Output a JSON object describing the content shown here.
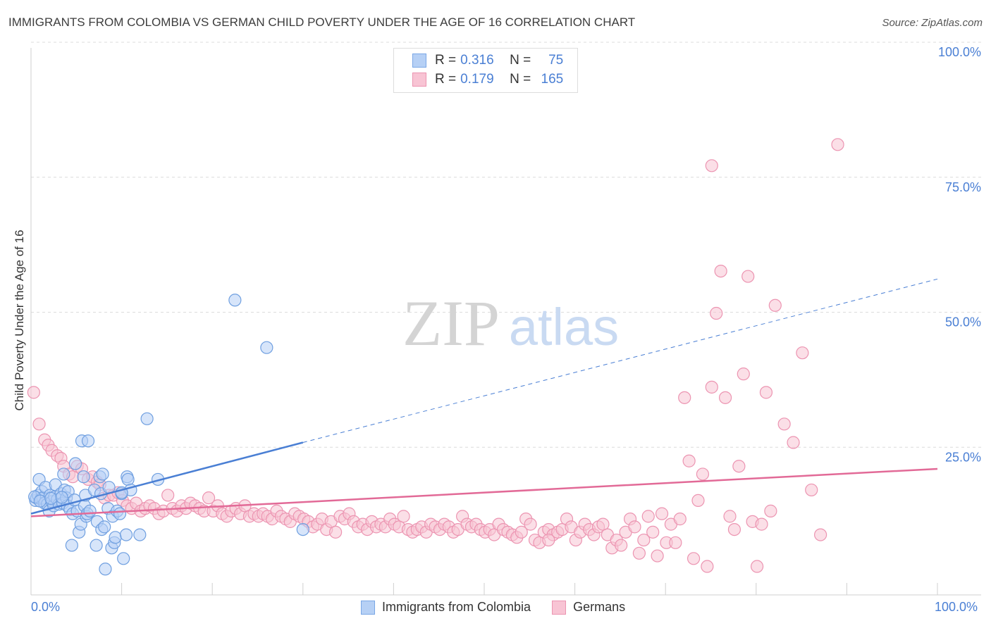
{
  "title": "IMMIGRANTS FROM COLOMBIA VS GERMAN CHILD POVERTY UNDER THE AGE OF 16 CORRELATION CHART",
  "source": "Source: ZipAtlas.com",
  "watermark": {
    "zip": "ZIP",
    "atlas": "atlas"
  },
  "legend": {
    "series1": {
      "r_label": "R = ",
      "r_value": "0.316",
      "n_label": "N = ",
      "n_value": "75"
    },
    "series2": {
      "r_label": "R = ",
      "r_value": "0.179",
      "n_label": "N = ",
      "n_value": "165"
    }
  },
  "x_min_label": "0.0%",
  "x_max_label": "100.0%",
  "colors": {
    "blue": "#4a7fd4",
    "blue_fill": "#b6d0f5",
    "pink": "#e26a97",
    "pink_fill": "#f8c4d4",
    "axis_text": "#4a7fd4"
  },
  "chart_data": {
    "type": "scatter",
    "title": "IMMIGRANTS FROM COLOMBIA VS GERMAN CHILD POVERTY UNDER THE AGE OF 16 CORRELATION CHART",
    "xlabel": "",
    "ylabel": "Child Poverty Under the Age of 16",
    "xlim": [
      0,
      100
    ],
    "ylim": [
      0,
      100
    ],
    "y_ticks": [
      {
        "value": 25,
        "label": "25.0%"
      },
      {
        "value": 50,
        "label": "50.0%"
      },
      {
        "value": 75,
        "label": "75.0%"
      },
      {
        "value": 100,
        "label": "100.0%"
      }
    ],
    "series": [
      {
        "name": "Immigrants from Colombia",
        "color": "#4a7fd4",
        "points": [
          [
            0.5,
            15.5
          ],
          [
            0.6,
            16.0
          ],
          [
            0.8,
            16.5
          ],
          [
            0.9,
            19.5
          ],
          [
            1.1,
            15.8
          ],
          [
            1.2,
            17.2
          ],
          [
            1.3,
            16.0
          ],
          [
            1.5,
            15.0
          ],
          [
            1.6,
            18.0
          ],
          [
            1.8,
            14.8
          ],
          [
            2.0,
            13.5
          ],
          [
            2.1,
            16.5
          ],
          [
            2.3,
            15.3
          ],
          [
            2.5,
            14.5
          ],
          [
            2.6,
            16.2
          ],
          [
            2.7,
            18.5
          ],
          [
            2.9,
            15.7
          ],
          [
            3.1,
            14.8
          ],
          [
            3.3,
            16.8
          ],
          [
            3.5,
            15.0
          ],
          [
            3.6,
            20.5
          ],
          [
            3.7,
            17.5
          ],
          [
            3.9,
            16.0
          ],
          [
            4.0,
            14.5
          ],
          [
            4.1,
            17.2
          ],
          [
            4.3,
            13.8
          ],
          [
            4.5,
            7.0
          ],
          [
            4.6,
            13.0
          ],
          [
            4.9,
            22.5
          ],
          [
            5.1,
            13.5
          ],
          [
            5.3,
            9.5
          ],
          [
            5.5,
            11.0
          ],
          [
            5.6,
            26.8
          ],
          [
            5.8,
            20.0
          ],
          [
            5.9,
            14.5
          ],
          [
            6.0,
            16.5
          ],
          [
            6.1,
            12.5
          ],
          [
            6.2,
            13.0
          ],
          [
            6.3,
            26.8
          ],
          [
            6.5,
            13.5
          ],
          [
            7.0,
            17.5
          ],
          [
            7.2,
            7.0
          ],
          [
            7.3,
            11.5
          ],
          [
            7.6,
            20.0
          ],
          [
            7.7,
            16.8
          ],
          [
            7.8,
            10.0
          ],
          [
            7.9,
            20.5
          ],
          [
            8.1,
            10.5
          ],
          [
            8.2,
            2.5
          ],
          [
            8.5,
            14.0
          ],
          [
            8.6,
            18.0
          ],
          [
            8.9,
            6.5
          ],
          [
            9.0,
            12.5
          ],
          [
            9.2,
            7.5
          ],
          [
            9.3,
            8.5
          ],
          [
            9.5,
            13.5
          ],
          [
            9.8,
            13.0
          ],
          [
            10.0,
            16.8
          ],
          [
            10.2,
            4.5
          ],
          [
            10.5,
            9.0
          ],
          [
            10.6,
            20.0
          ],
          [
            10.7,
            19.5
          ],
          [
            11.0,
            17.5
          ],
          [
            12.0,
            9.0
          ],
          [
            12.8,
            31.0
          ],
          [
            14.0,
            19.5
          ],
          [
            22.5,
            53.5
          ],
          [
            26.0,
            44.5
          ],
          [
            30.0,
            10.0
          ],
          [
            10.0,
            17.0
          ],
          [
            0.4,
            16.2
          ],
          [
            1.0,
            15.4
          ],
          [
            2.2,
            15.9
          ],
          [
            3.4,
            16.1
          ],
          [
            4.8,
            15.6
          ]
        ]
      },
      {
        "name": "Germans",
        "color": "#e26a97",
        "points": [
          [
            0.3,
            36.0
          ],
          [
            0.9,
            30.0
          ],
          [
            1.5,
            27.0
          ],
          [
            1.9,
            26.0
          ],
          [
            2.3,
            25.0
          ],
          [
            2.9,
            24.0
          ],
          [
            3.3,
            23.5
          ],
          [
            3.6,
            22.0
          ],
          [
            4.2,
            20.5
          ],
          [
            4.6,
            20.0
          ],
          [
            5.1,
            22.0
          ],
          [
            5.6,
            21.5
          ],
          [
            6.3,
            19.5
          ],
          [
            6.8,
            20.0
          ],
          [
            7.3,
            19.0
          ],
          [
            7.6,
            18.5
          ],
          [
            8.1,
            16.0
          ],
          [
            8.6,
            16.5
          ],
          [
            9.1,
            16.5
          ],
          [
            9.6,
            17.0
          ],
          [
            10.1,
            15.5
          ],
          [
            10.6,
            14.5
          ],
          [
            11.1,
            14.0
          ],
          [
            11.6,
            15.0
          ],
          [
            12.1,
            13.5
          ],
          [
            12.6,
            14.0
          ],
          [
            13.1,
            14.5
          ],
          [
            13.6,
            14.0
          ],
          [
            14.1,
            13.0
          ],
          [
            14.6,
            13.5
          ],
          [
            15.1,
            16.5
          ],
          [
            15.6,
            14.0
          ],
          [
            16.1,
            13.5
          ],
          [
            16.6,
            14.5
          ],
          [
            17.1,
            14.0
          ],
          [
            17.6,
            15.0
          ],
          [
            18.1,
            14.5
          ],
          [
            18.6,
            14.0
          ],
          [
            19.1,
            13.5
          ],
          [
            19.6,
            16.0
          ],
          [
            20.1,
            13.5
          ],
          [
            20.6,
            14.5
          ],
          [
            21.1,
            13.0
          ],
          [
            21.6,
            12.5
          ],
          [
            22.1,
            13.5
          ],
          [
            22.6,
            14.0
          ],
          [
            23.1,
            13.0
          ],
          [
            23.6,
            14.5
          ],
          [
            24.1,
            12.5
          ],
          [
            24.6,
            13.0
          ],
          [
            25.1,
            12.5
          ],
          [
            25.6,
            13.0
          ],
          [
            26.1,
            12.5
          ],
          [
            26.6,
            12.0
          ],
          [
            27.1,
            13.5
          ],
          [
            27.6,
            12.5
          ],
          [
            28.1,
            12.0
          ],
          [
            28.6,
            11.5
          ],
          [
            29.1,
            13.0
          ],
          [
            29.6,
            12.5
          ],
          [
            30.1,
            12.0
          ],
          [
            30.6,
            11.5
          ],
          [
            31.1,
            10.5
          ],
          [
            31.6,
            11.0
          ],
          [
            32.1,
            12.0
          ],
          [
            32.6,
            10.0
          ],
          [
            33.1,
            11.5
          ],
          [
            33.6,
            9.5
          ],
          [
            34.1,
            12.5
          ],
          [
            34.6,
            12.0
          ],
          [
            35.1,
            13.0
          ],
          [
            35.6,
            11.5
          ],
          [
            36.1,
            10.5
          ],
          [
            36.6,
            11.0
          ],
          [
            37.1,
            10.0
          ],
          [
            37.6,
            11.5
          ],
          [
            38.1,
            10.5
          ],
          [
            38.6,
            11.0
          ],
          [
            39.1,
            10.5
          ],
          [
            39.6,
            12.0
          ],
          [
            40.1,
            11.0
          ],
          [
            40.6,
            10.5
          ],
          [
            41.1,
            12.5
          ],
          [
            41.6,
            10.0
          ],
          [
            42.1,
            9.5
          ],
          [
            42.6,
            10.0
          ],
          [
            43.1,
            10.5
          ],
          [
            43.6,
            9.5
          ],
          [
            44.1,
            11.0
          ],
          [
            44.6,
            10.5
          ],
          [
            45.1,
            10.0
          ],
          [
            45.6,
            11.0
          ],
          [
            46.1,
            10.5
          ],
          [
            46.6,
            9.5
          ],
          [
            47.1,
            10.0
          ],
          [
            47.6,
            12.5
          ],
          [
            48.1,
            11.0
          ],
          [
            48.6,
            10.5
          ],
          [
            49.1,
            11.0
          ],
          [
            49.6,
            10.0
          ],
          [
            50.1,
            9.5
          ],
          [
            50.6,
            10.0
          ],
          [
            51.1,
            9.0
          ],
          [
            51.6,
            11.0
          ],
          [
            52.1,
            10.0
          ],
          [
            52.6,
            9.5
          ],
          [
            53.1,
            9.0
          ],
          [
            53.6,
            8.5
          ],
          [
            54.1,
            9.5
          ],
          [
            54.6,
            12.0
          ],
          [
            55.1,
            11.0
          ],
          [
            55.6,
            8.0
          ],
          [
            56.1,
            7.5
          ],
          [
            56.6,
            9.5
          ],
          [
            57.1,
            10.0
          ],
          [
            57.6,
            9.0
          ],
          [
            58.1,
            9.5
          ],
          [
            58.6,
            10.0
          ],
          [
            59.1,
            12.0
          ],
          [
            59.6,
            10.5
          ],
          [
            60.1,
            8.0
          ],
          [
            60.6,
            9.5
          ],
          [
            61.1,
            11.0
          ],
          [
            61.6,
            10.0
          ],
          [
            62.1,
            9.0
          ],
          [
            62.6,
            10.5
          ],
          [
            63.1,
            11.0
          ],
          [
            63.6,
            9.0
          ],
          [
            64.1,
            6.5
          ],
          [
            64.6,
            8.0
          ],
          [
            65.1,
            7.0
          ],
          [
            65.6,
            9.5
          ],
          [
            66.1,
            12.0
          ],
          [
            66.6,
            10.5
          ],
          [
            67.1,
            5.5
          ],
          [
            67.6,
            8.0
          ],
          [
            68.1,
            12.5
          ],
          [
            68.6,
            9.5
          ],
          [
            69.1,
            5.0
          ],
          [
            69.6,
            13.0
          ],
          [
            70.1,
            7.5
          ],
          [
            70.6,
            11.0
          ],
          [
            71.1,
            7.5
          ],
          [
            71.6,
            12.0
          ],
          [
            72.1,
            35.0
          ],
          [
            72.6,
            23.0
          ],
          [
            73.1,
            4.5
          ],
          [
            73.6,
            15.5
          ],
          [
            74.1,
            20.5
          ],
          [
            74.6,
            3.0
          ],
          [
            75.1,
            37.0
          ],
          [
            75.6,
            51.0
          ],
          [
            76.1,
            59.0
          ],
          [
            76.6,
            35.0
          ],
          [
            77.1,
            12.5
          ],
          [
            77.6,
            10.0
          ],
          [
            78.1,
            22.0
          ],
          [
            78.6,
            39.5
          ],
          [
            79.1,
            58.0
          ],
          [
            79.6,
            11.5
          ],
          [
            80.1,
            3.0
          ],
          [
            80.6,
            11.0
          ],
          [
            81.1,
            36.0
          ],
          [
            81.6,
            13.5
          ],
          [
            82.1,
            52.5
          ],
          [
            83.1,
            30.0
          ],
          [
            84.1,
            26.5
          ],
          [
            85.1,
            43.5
          ],
          [
            86.1,
            17.5
          ],
          [
            87.1,
            9.0
          ],
          [
            89.0,
            83.0
          ],
          [
            75.1,
            79.0
          ],
          [
            57.1,
            8.0
          ]
        ]
      }
    ],
    "trendlines": [
      {
        "series": "Immigrants from Colombia",
        "x": [
          0,
          30
        ],
        "y": [
          13.0,
          26.5
        ],
        "style": "solid"
      },
      {
        "series": "Immigrants from Colombia",
        "x": [
          30,
          100
        ],
        "y": [
          26.5,
          57.5
        ],
        "style": "dashed"
      },
      {
        "series": "Germans",
        "x": [
          0,
          100
        ],
        "y": [
          12.5,
          21.5
        ],
        "style": "solid"
      }
    ]
  }
}
